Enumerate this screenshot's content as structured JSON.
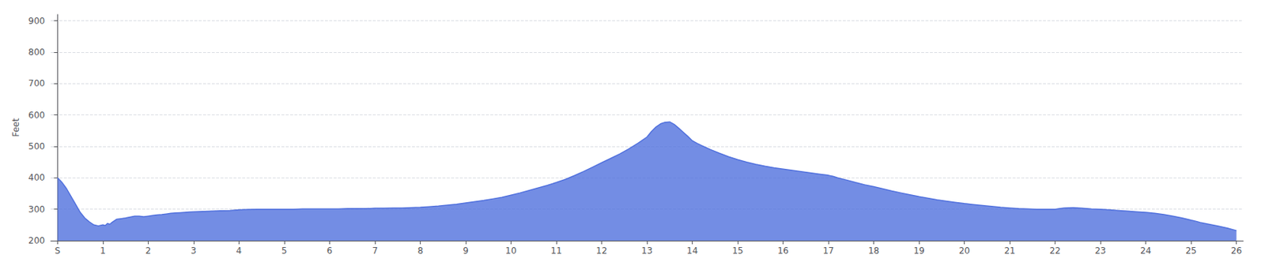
{
  "chart_data": {
    "type": "area",
    "ylabel": "Feet",
    "xlim": [
      -0.15,
      26.15
    ],
    "xticks": [
      {
        "value": 0,
        "label": "S"
      },
      1,
      2,
      3,
      4,
      5,
      6,
      7,
      8,
      9,
      10,
      11,
      12,
      13,
      14,
      15,
      16,
      17,
      18,
      19,
      20,
      21,
      22,
      23,
      24,
      25,
      26
    ],
    "ylim": [
      200,
      920
    ],
    "yticks": [
      200,
      300,
      400,
      500,
      600,
      700,
      800,
      900
    ],
    "grid": true,
    "x": [
      0.0,
      0.1,
      0.2,
      0.3,
      0.4,
      0.5,
      0.6,
      0.7,
      0.8,
      0.9,
      1.0,
      1.05,
      1.1,
      1.15,
      1.2,
      1.3,
      1.4,
      1.5,
      1.6,
      1.7,
      1.8,
      1.9,
      2.0,
      2.1,
      2.2,
      2.3,
      2.4,
      2.5,
      2.6,
      2.7,
      2.8,
      2.9,
      3.0,
      3.2,
      3.4,
      3.6,
      3.8,
      4.0,
      4.2,
      4.4,
      4.6,
      4.8,
      5.0,
      5.2,
      5.4,
      5.6,
      5.8,
      6.0,
      6.2,
      6.4,
      6.6,
      6.8,
      7.0,
      7.2,
      7.4,
      7.6,
      7.8,
      8.0,
      8.2,
      8.4,
      8.6,
      8.8,
      9.0,
      9.2,
      9.4,
      9.6,
      9.8,
      10.0,
      10.2,
      10.4,
      10.6,
      10.8,
      11.0,
      11.2,
      11.4,
      11.6,
      11.8,
      12.0,
      12.2,
      12.4,
      12.6,
      12.8,
      13.0,
      13.1,
      13.2,
      13.3,
      13.4,
      13.5,
      13.6,
      13.7,
      13.8,
      13.9,
      14.0,
      14.1,
      14.2,
      14.4,
      14.6,
      14.8,
      15.0,
      15.2,
      15.4,
      15.6,
      15.8,
      16.0,
      16.2,
      16.4,
      16.6,
      16.8,
      17.0,
      17.1,
      17.2,
      17.4,
      17.6,
      17.8,
      18.0,
      18.2,
      18.4,
      18.6,
      18.8,
      19.0,
      19.2,
      19.4,
      19.6,
      19.8,
      20.0,
      20.2,
      20.4,
      20.6,
      20.8,
      21.0,
      21.2,
      21.4,
      21.6,
      21.8,
      22.0,
      22.1,
      22.2,
      22.4,
      22.6,
      22.8,
      23.0,
      23.2,
      23.4,
      23.6,
      23.8,
      24.0,
      24.2,
      24.4,
      24.6,
      24.8,
      25.0,
      25.1,
      25.2,
      25.4,
      25.6,
      25.8,
      26.0
    ],
    "values": [
      400,
      385,
      365,
      340,
      315,
      290,
      272,
      260,
      250,
      247,
      250,
      248,
      255,
      252,
      258,
      268,
      270,
      272,
      275,
      278,
      278,
      276,
      278,
      280,
      282,
      283,
      285,
      287,
      288,
      289,
      290,
      291,
      292,
      293,
      294,
      295,
      296,
      298,
      299,
      300,
      300,
      300,
      300,
      300,
      301,
      301,
      301,
      301,
      301,
      302,
      302,
      302,
      303,
      303,
      304,
      304,
      305,
      306,
      308,
      310,
      313,
      316,
      320,
      324,
      328,
      333,
      338,
      345,
      352,
      360,
      368,
      376,
      385,
      395,
      407,
      420,
      434,
      448,
      462,
      476,
      492,
      510,
      530,
      548,
      562,
      572,
      577,
      578,
      570,
      558,
      545,
      532,
      518,
      510,
      503,
      490,
      478,
      467,
      458,
      450,
      443,
      437,
      432,
      428,
      424,
      420,
      416,
      412,
      408,
      405,
      400,
      393,
      385,
      378,
      372,
      365,
      358,
      352,
      346,
      340,
      335,
      330,
      326,
      322,
      318,
      315,
      312,
      309,
      306,
      304,
      302,
      301,
      300,
      300,
      300,
      302,
      304,
      305,
      303,
      301,
      300,
      298,
      296,
      294,
      292,
      290,
      287,
      283,
      278,
      272,
      265,
      262,
      258,
      252,
      246,
      240,
      232
    ]
  }
}
